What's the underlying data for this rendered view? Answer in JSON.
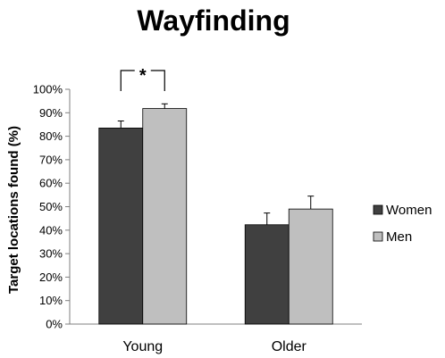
{
  "chart_data": {
    "type": "bar",
    "title": "Wayfinding",
    "ylabel": "Target locations found (%)",
    "xlabel": "",
    "categories": [
      "Young",
      "Older"
    ],
    "series": [
      {
        "name": "Women",
        "values": [
          83.5,
          42.3
        ],
        "errors": [
          3,
          5
        ],
        "color": "#404040"
      },
      {
        "name": "Men",
        "values": [
          91.8,
          49
        ],
        "errors": [
          2,
          5.5
        ],
        "color": "#bfbfbf"
      }
    ],
    "ylim": [
      0,
      100
    ],
    "yticks": [
      "0%",
      "10%",
      "20%",
      "30%",
      "40%",
      "50%",
      "60%",
      "70%",
      "80%",
      "90%",
      "100%"
    ],
    "legend_position": "right",
    "grid": false,
    "annotations": [
      {
        "text": "*",
        "category": "Young",
        "between": [
          "Women",
          "Men"
        ]
      }
    ]
  }
}
